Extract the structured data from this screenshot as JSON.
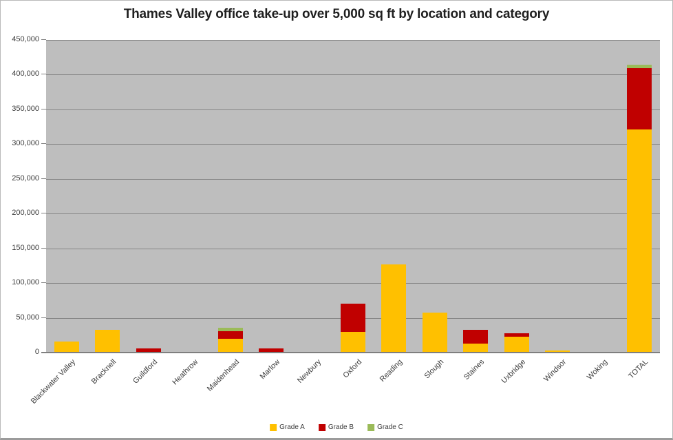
{
  "chart_data": {
    "type": "bar",
    "stacked": true,
    "title": "Thames Valley office take-up over 5,000 sq ft by location and category",
    "categories": [
      "Blackwater Valley",
      "Bracknell",
      "Guildford",
      "Heathrow",
      "Maidenhead",
      "Marlow",
      "Newbury",
      "Oxford",
      "Reading",
      "Slough",
      "Staines",
      "Uxbridge",
      "Windsor",
      "Woking",
      "TOTAL"
    ],
    "series": [
      {
        "name": "Grade A",
        "color": "#FFC000",
        "values": [
          16000,
          33000,
          0,
          0,
          20000,
          0,
          0,
          30000,
          127000,
          58000,
          12500,
          22500,
          2500,
          0,
          321500
        ]
      },
      {
        "name": "Grade B",
        "color": "#C00000",
        "values": [
          0,
          0,
          5500,
          0,
          11000,
          5500,
          0,
          40000,
          0,
          0,
          20000,
          5500,
          0,
          0,
          87500
        ]
      },
      {
        "name": "Grade C",
        "color": "#9BBB59",
        "values": [
          0,
          0,
          0,
          0,
          5000,
          0,
          0,
          0,
          0,
          0,
          0,
          0,
          0,
          0,
          5000
        ]
      }
    ],
    "ylabel": "",
    "xlabel": "",
    "ylim": [
      0,
      450000
    ],
    "ytick_step": 50000,
    "ytick_labels": [
      "0",
      "50,000",
      "100,000",
      "150,000",
      "200,000",
      "250,000",
      "300,000",
      "350,000",
      "400,000",
      "450,000"
    ],
    "grid": true,
    "legend_position": "bottom-center",
    "plot_bg_color": "#BEBEBE",
    "gridline_color": "#858585",
    "axis_color": "#7F7F7F",
    "text_color": "#3C3C3C"
  }
}
